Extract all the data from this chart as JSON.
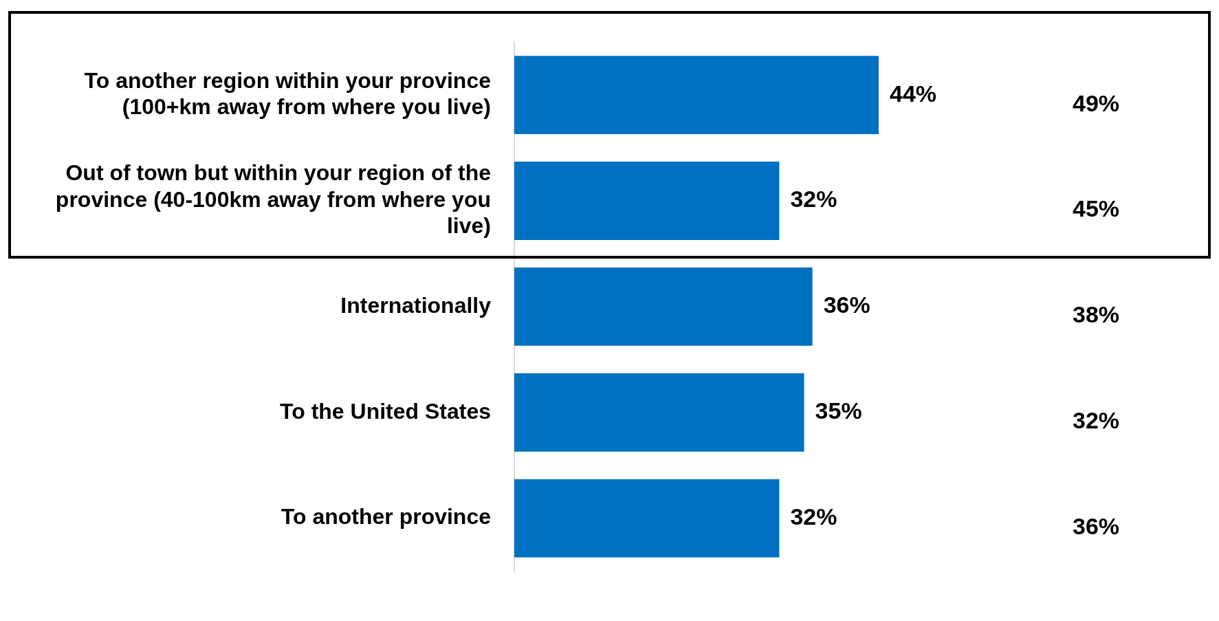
{
  "chart_data": {
    "type": "bar",
    "orientation": "horizontal",
    "categories": [
      "To another region within your province (100+km away from where you live)",
      "Out of town but within your region of the province (40-100km away from where you live)",
      "Internationally",
      "To the United States",
      "To another province"
    ],
    "values": [
      44,
      32,
      36,
      35,
      32
    ],
    "color": "#0070c0",
    "value_labels": [
      "44%",
      "32%",
      "36%",
      "35%",
      "32%"
    ],
    "tick_labels": "y",
    "annotations": [
      "49%",
      "45%",
      "38%",
      "32%",
      "36%"
    ]
  }
}
